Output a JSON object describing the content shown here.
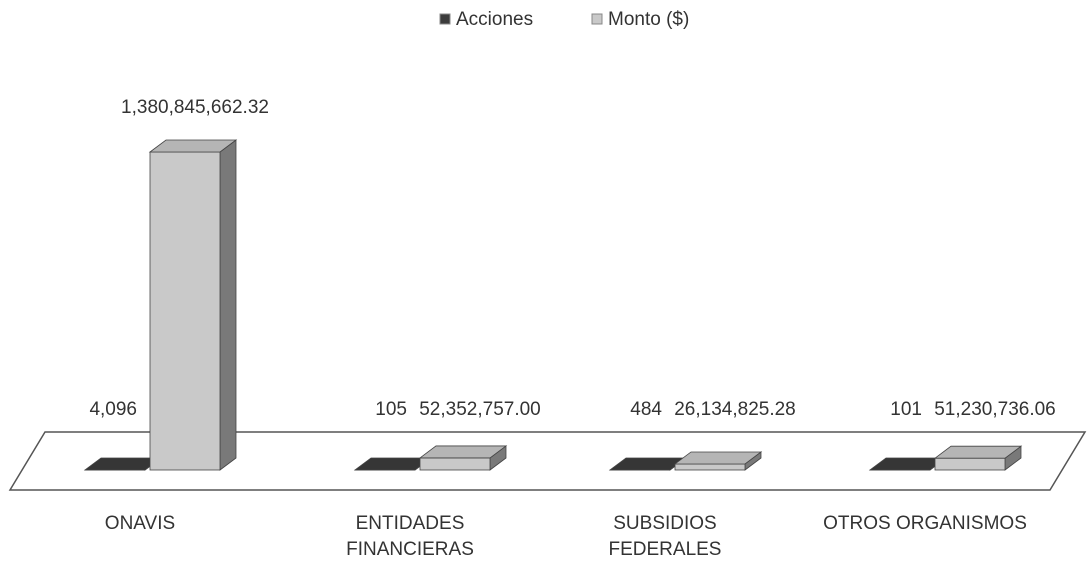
{
  "chart_data": {
    "type": "bar3d",
    "categories": [
      "ONAVIS",
      "ENTIDADES FINANCIERAS",
      "SUBSIDIOS FEDERALES",
      "OTROS ORGANISMOS"
    ],
    "series": [
      {
        "name": "Acciones",
        "color": "#3c3c3c",
        "values": [
          4096,
          105,
          484,
          101
        ],
        "value_labels": [
          "4,096",
          "105",
          "484",
          "101"
        ]
      },
      {
        "name": "Monto ($)",
        "color": "#c9c9c9",
        "values": [
          1380845662.32,
          52352757.0,
          26134825.28,
          51230736.06
        ],
        "value_labels": [
          "1,380,845,662.32",
          "52,352,757.00",
          "26,134,825.28",
          "51,230,736.06"
        ]
      }
    ],
    "legend": "top"
  }
}
